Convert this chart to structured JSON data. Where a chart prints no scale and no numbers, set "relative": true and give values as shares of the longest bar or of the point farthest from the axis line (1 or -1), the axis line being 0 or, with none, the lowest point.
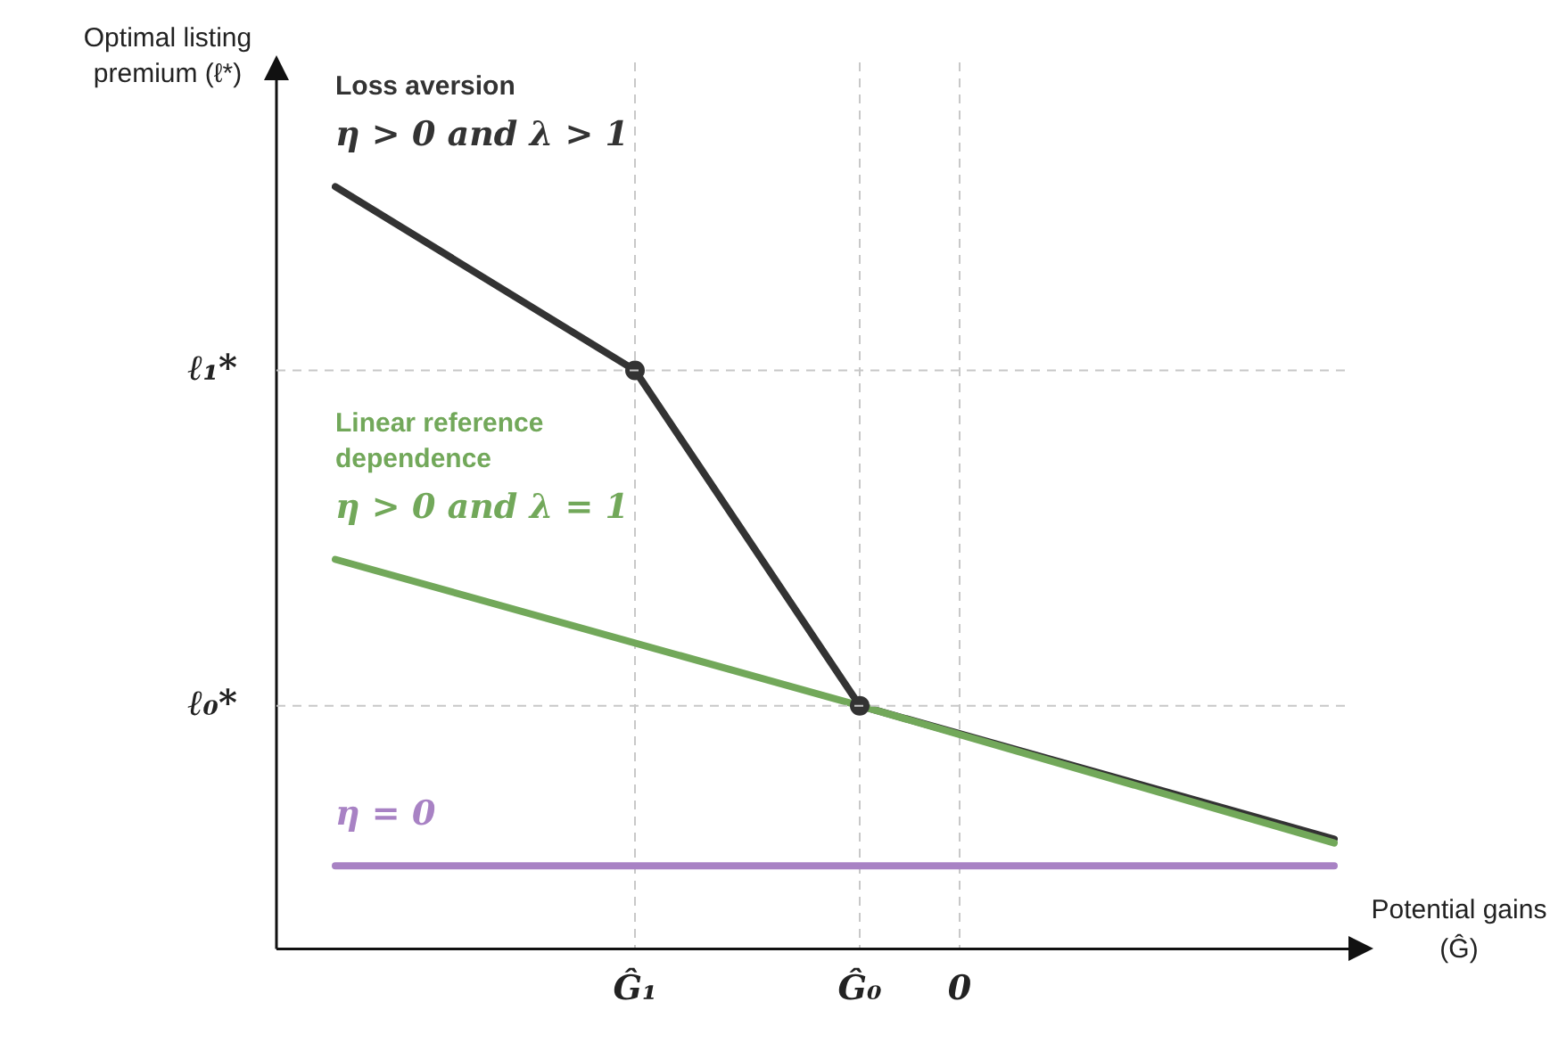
{
  "chart_data": {
    "type": "line",
    "relative": true,
    "xlabel": "Potential gains (Ĝ)",
    "ylabel": "Optimal listing premium (ℓ*)",
    "categories": [
      null,
      null,
      null,
      null,
      null,
      null,
      null,
      null,
      null,
      null,
      null,
      null,
      "Ĝ₁",
      null,
      null,
      null,
      null,
      null,
      null,
      null,
      null,
      "Ĝ₀",
      null,
      null,
      null,
      "0",
      null,
      null,
      null,
      null,
      null,
      null,
      null,
      null,
      null,
      null,
      null,
      null,
      null,
      null,
      null
    ],
    "grid": "x",
    "legend": false,
    "marker": "none",
    "line_style": "solid",
    "series": [
      {
        "name": "Linear reference dependence",
        "color": "#72a85a",
        "values": [
          0.511,
          null,
          null,
          null,
          null,
          null,
          null,
          null,
          null,
          null,
          null,
          null,
          null,
          null,
          null,
          null,
          null,
          null,
          null,
          null,
          null,
          0.319,
          null,
          null,
          null,
          null,
          null,
          null,
          null,
          null,
          null,
          null,
          null,
          null,
          null,
          null,
          null,
          null,
          null,
          null,
          0.139
        ]
      },
      {
        "name": "Loss aversion",
        "color": "#333333",
        "values": [
          1,
          null,
          null,
          null,
          null,
          null,
          null,
          null,
          null,
          null,
          null,
          null,
          0.759,
          null,
          null,
          null,
          null,
          null,
          null,
          null,
          null,
          0.319,
          null,
          null,
          null,
          null,
          null,
          null,
          null,
          null,
          null,
          null,
          null,
          null,
          null,
          null,
          null,
          null,
          null,
          null,
          0.144
        ]
      },
      {
        "color": "#a882c4",
        "values": [
          0.109,
          null,
          null,
          null,
          null,
          null,
          null,
          null,
          null,
          null,
          null,
          null,
          null,
          null,
          null,
          null,
          null,
          null,
          null,
          null,
          null,
          null,
          null,
          null,
          null,
          null,
          null,
          null,
          null,
          null,
          null,
          null,
          null,
          null,
          null,
          null,
          null,
          null,
          null,
          null,
          0.109
        ]
      },
      {
        "type": "scatter",
        "marker": "circle",
        "color": "#333333",
        "values": [
          null,
          null,
          null,
          null,
          null,
          null,
          null,
          null,
          null,
          null,
          null,
          null,
          0.759,
          null,
          null,
          null,
          null,
          null,
          null,
          null,
          null,
          0.319,
          null,
          null,
          null,
          null,
          null,
          null,
          null,
          null,
          null,
          null,
          null,
          null,
          null,
          null,
          null,
          null,
          null,
          null,
          null
        ]
      }
    ],
    "ref_lines": [
      {
        "axis": "y",
        "value": 0.759,
        "label": "ℓ₁*",
        "line_style": "dashed",
        "color": "#c8c8c8"
      },
      {
        "axis": "y",
        "value": 0.319,
        "label": "ℓ₀*",
        "line_style": "dashed",
        "color": "#c8c8c8"
      }
    ],
    "annotations": [
      "η > 0 and λ = 1",
      "η > 0 and λ > 1",
      "η = 0"
    ]
  }
}
